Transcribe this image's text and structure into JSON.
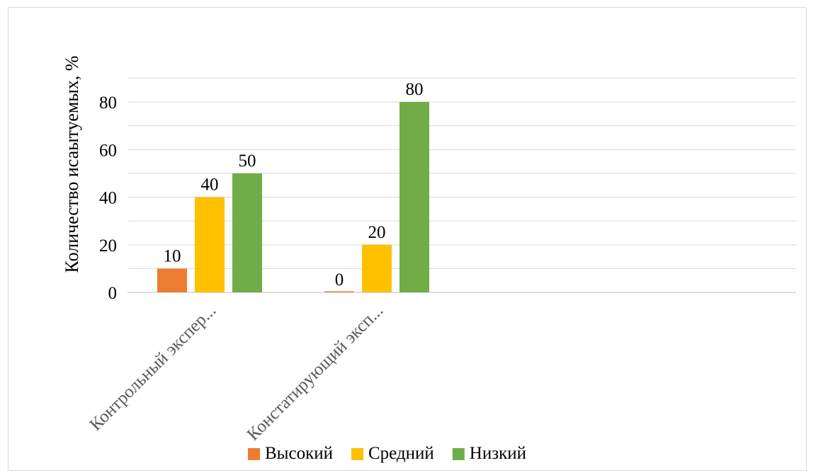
{
  "chart_data": {
    "type": "bar",
    "title": "",
    "xlabel": "",
    "ylabel": "Количество исаытуемых,  %",
    "ylim": [
      0,
      80
    ],
    "yticks": [
      0,
      20,
      40,
      60,
      80
    ],
    "grid": true,
    "legend_position": "bottom",
    "categories": [
      "Контрольный экспер...",
      "Констатирующий эксп..."
    ],
    "series": [
      {
        "name": "Высокий",
        "color": "#ed7d31",
        "values": [
          10,
          0
        ]
      },
      {
        "name": "Средний",
        "color": "#ffc000",
        "values": [
          40,
          20
        ]
      },
      {
        "name": "Низкий",
        "color": "#70ad47",
        "values": [
          50,
          80
        ]
      }
    ]
  }
}
